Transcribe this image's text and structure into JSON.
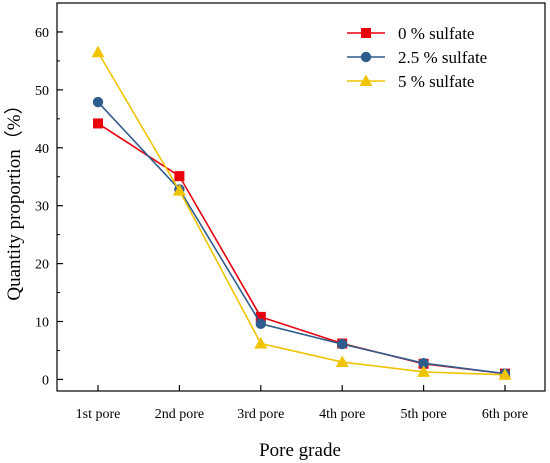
{
  "chart_data": {
    "type": "line",
    "title": "",
    "xlabel": "Pore grade",
    "ylabel": "Quantity proportion（%）",
    "categories": [
      "1st pore",
      "2nd pore",
      "3rd pore",
      "4th pore",
      "5th pore",
      "6th pore"
    ],
    "ylim": [
      -2,
      65
    ],
    "yticks": [
      0,
      10,
      20,
      30,
      40,
      50,
      60
    ],
    "grid": false,
    "legend_position": "top-right",
    "series": [
      {
        "name": "0 % sulfate",
        "color": "#e8000b",
        "marker": "square",
        "values": [
          44.2,
          35.1,
          10.8,
          6.2,
          2.7,
          1.0
        ]
      },
      {
        "name": "2.5 % sulfate",
        "color": "#2f5c8f",
        "marker": "circle",
        "values": [
          47.9,
          32.8,
          9.6,
          6.1,
          2.8,
          1.0
        ]
      },
      {
        "name": "5 % sulfate",
        "color": "#f0c400",
        "marker": "triangle",
        "values": [
          56.5,
          32.6,
          6.2,
          3.0,
          1.3,
          0.8
        ]
      }
    ]
  }
}
